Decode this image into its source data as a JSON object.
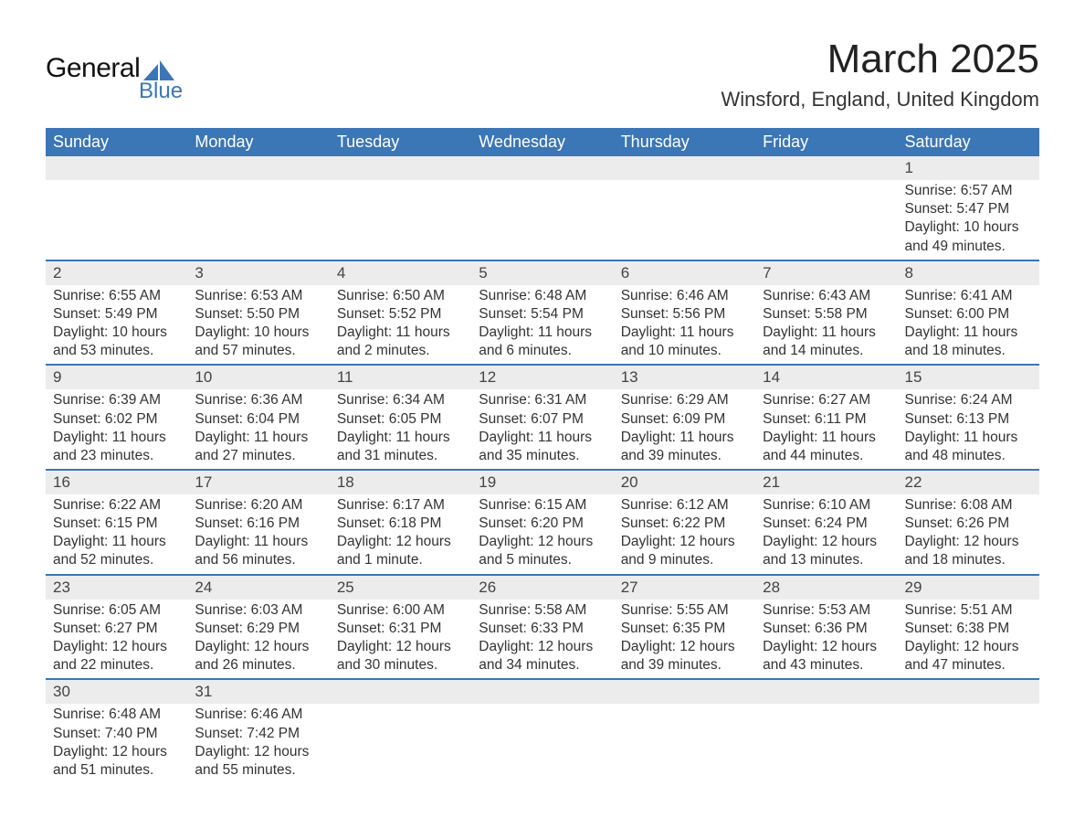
{
  "logo": {
    "main": "General",
    "sub": "Blue",
    "shape_color": "#3b76b6"
  },
  "title": "March 2025",
  "location": "Winsford, England, United Kingdom",
  "colors": {
    "header_bg": "#3b76b6",
    "header_fg": "#ffffff",
    "daynum_bg": "#ececec",
    "row_border": "#3b76b6",
    "text": "#333333",
    "bg": "#ffffff"
  },
  "typography": {
    "title_fontsize": 44,
    "location_fontsize": 22,
    "header_fontsize": 18,
    "daynum_fontsize": 17,
    "body_fontsize": 15.5
  },
  "weekdays": [
    "Sunday",
    "Monday",
    "Tuesday",
    "Wednesday",
    "Thursday",
    "Friday",
    "Saturday"
  ],
  "weeks": [
    [
      {
        "blank": true
      },
      {
        "blank": true
      },
      {
        "blank": true
      },
      {
        "blank": true
      },
      {
        "blank": true
      },
      {
        "blank": true
      },
      {
        "day": "1",
        "sunrise": "Sunrise: 6:57 AM",
        "sunset": "Sunset: 5:47 PM",
        "daylight": "Daylight: 10 hours and 49 minutes."
      }
    ],
    [
      {
        "day": "2",
        "sunrise": "Sunrise: 6:55 AM",
        "sunset": "Sunset: 5:49 PM",
        "daylight": "Daylight: 10 hours and 53 minutes."
      },
      {
        "day": "3",
        "sunrise": "Sunrise: 6:53 AM",
        "sunset": "Sunset: 5:50 PM",
        "daylight": "Daylight: 10 hours and 57 minutes."
      },
      {
        "day": "4",
        "sunrise": "Sunrise: 6:50 AM",
        "sunset": "Sunset: 5:52 PM",
        "daylight": "Daylight: 11 hours and 2 minutes."
      },
      {
        "day": "5",
        "sunrise": "Sunrise: 6:48 AM",
        "sunset": "Sunset: 5:54 PM",
        "daylight": "Daylight: 11 hours and 6 minutes."
      },
      {
        "day": "6",
        "sunrise": "Sunrise: 6:46 AM",
        "sunset": "Sunset: 5:56 PM",
        "daylight": "Daylight: 11 hours and 10 minutes."
      },
      {
        "day": "7",
        "sunrise": "Sunrise: 6:43 AM",
        "sunset": "Sunset: 5:58 PM",
        "daylight": "Daylight: 11 hours and 14 minutes."
      },
      {
        "day": "8",
        "sunrise": "Sunrise: 6:41 AM",
        "sunset": "Sunset: 6:00 PM",
        "daylight": "Daylight: 11 hours and 18 minutes."
      }
    ],
    [
      {
        "day": "9",
        "sunrise": "Sunrise: 6:39 AM",
        "sunset": "Sunset: 6:02 PM",
        "daylight": "Daylight: 11 hours and 23 minutes."
      },
      {
        "day": "10",
        "sunrise": "Sunrise: 6:36 AM",
        "sunset": "Sunset: 6:04 PM",
        "daylight": "Daylight: 11 hours and 27 minutes."
      },
      {
        "day": "11",
        "sunrise": "Sunrise: 6:34 AM",
        "sunset": "Sunset: 6:05 PM",
        "daylight": "Daylight: 11 hours and 31 minutes."
      },
      {
        "day": "12",
        "sunrise": "Sunrise: 6:31 AM",
        "sunset": "Sunset: 6:07 PM",
        "daylight": "Daylight: 11 hours and 35 minutes."
      },
      {
        "day": "13",
        "sunrise": "Sunrise: 6:29 AM",
        "sunset": "Sunset: 6:09 PM",
        "daylight": "Daylight: 11 hours and 39 minutes."
      },
      {
        "day": "14",
        "sunrise": "Sunrise: 6:27 AM",
        "sunset": "Sunset: 6:11 PM",
        "daylight": "Daylight: 11 hours and 44 minutes."
      },
      {
        "day": "15",
        "sunrise": "Sunrise: 6:24 AM",
        "sunset": "Sunset: 6:13 PM",
        "daylight": "Daylight: 11 hours and 48 minutes."
      }
    ],
    [
      {
        "day": "16",
        "sunrise": "Sunrise: 6:22 AM",
        "sunset": "Sunset: 6:15 PM",
        "daylight": "Daylight: 11 hours and 52 minutes."
      },
      {
        "day": "17",
        "sunrise": "Sunrise: 6:20 AM",
        "sunset": "Sunset: 6:16 PM",
        "daylight": "Daylight: 11 hours and 56 minutes."
      },
      {
        "day": "18",
        "sunrise": "Sunrise: 6:17 AM",
        "sunset": "Sunset: 6:18 PM",
        "daylight": "Daylight: 12 hours and 1 minute."
      },
      {
        "day": "19",
        "sunrise": "Sunrise: 6:15 AM",
        "sunset": "Sunset: 6:20 PM",
        "daylight": "Daylight: 12 hours and 5 minutes."
      },
      {
        "day": "20",
        "sunrise": "Sunrise: 6:12 AM",
        "sunset": "Sunset: 6:22 PM",
        "daylight": "Daylight: 12 hours and 9 minutes."
      },
      {
        "day": "21",
        "sunrise": "Sunrise: 6:10 AM",
        "sunset": "Sunset: 6:24 PM",
        "daylight": "Daylight: 12 hours and 13 minutes."
      },
      {
        "day": "22",
        "sunrise": "Sunrise: 6:08 AM",
        "sunset": "Sunset: 6:26 PM",
        "daylight": "Daylight: 12 hours and 18 minutes."
      }
    ],
    [
      {
        "day": "23",
        "sunrise": "Sunrise: 6:05 AM",
        "sunset": "Sunset: 6:27 PM",
        "daylight": "Daylight: 12 hours and 22 minutes."
      },
      {
        "day": "24",
        "sunrise": "Sunrise: 6:03 AM",
        "sunset": "Sunset: 6:29 PM",
        "daylight": "Daylight: 12 hours and 26 minutes."
      },
      {
        "day": "25",
        "sunrise": "Sunrise: 6:00 AM",
        "sunset": "Sunset: 6:31 PM",
        "daylight": "Daylight: 12 hours and 30 minutes."
      },
      {
        "day": "26",
        "sunrise": "Sunrise: 5:58 AM",
        "sunset": "Sunset: 6:33 PM",
        "daylight": "Daylight: 12 hours and 34 minutes."
      },
      {
        "day": "27",
        "sunrise": "Sunrise: 5:55 AM",
        "sunset": "Sunset: 6:35 PM",
        "daylight": "Daylight: 12 hours and 39 minutes."
      },
      {
        "day": "28",
        "sunrise": "Sunrise: 5:53 AM",
        "sunset": "Sunset: 6:36 PM",
        "daylight": "Daylight: 12 hours and 43 minutes."
      },
      {
        "day": "29",
        "sunrise": "Sunrise: 5:51 AM",
        "sunset": "Sunset: 6:38 PM",
        "daylight": "Daylight: 12 hours and 47 minutes."
      }
    ],
    [
      {
        "day": "30",
        "sunrise": "Sunrise: 6:48 AM",
        "sunset": "Sunset: 7:40 PM",
        "daylight": "Daylight: 12 hours and 51 minutes."
      },
      {
        "day": "31",
        "sunrise": "Sunrise: 6:46 AM",
        "sunset": "Sunset: 7:42 PM",
        "daylight": "Daylight: 12 hours and 55 minutes."
      },
      {
        "blank": true
      },
      {
        "blank": true
      },
      {
        "blank": true
      },
      {
        "blank": true
      },
      {
        "blank": true
      }
    ]
  ]
}
